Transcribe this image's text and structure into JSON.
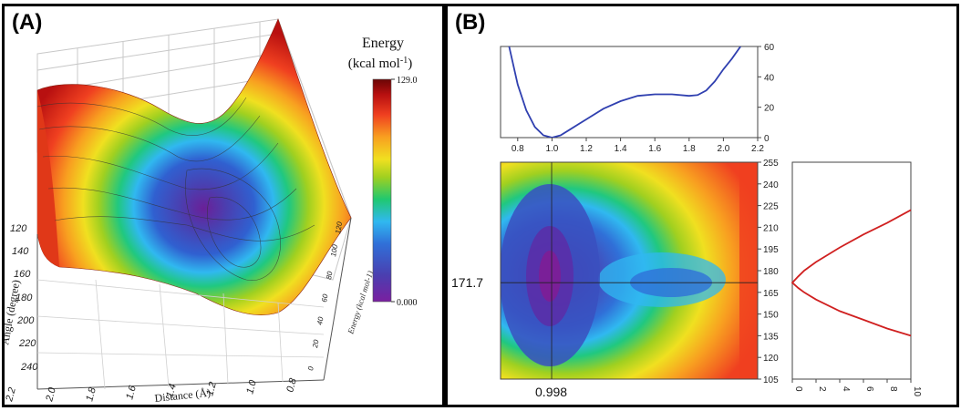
{
  "panel_a": {
    "label": "(A)",
    "colorbar": {
      "title_line1": "Energy",
      "title_line2": "(kcal mol",
      "title_sup": "-1",
      "title_end": ")",
      "max_label": "129.0",
      "min_label": "0.000",
      "colors": [
        "#7a1fa0",
        "#4a3fb0",
        "#3070d8",
        "#30b8f0",
        "#20c870",
        "#a0d020",
        "#f0e020",
        "#f8a020",
        "#f04020",
        "#b81010",
        "#6a0505"
      ]
    },
    "angle_axis": {
      "label": "Angle (degree)",
      "ticks": [
        "120",
        "140",
        "160",
        "180",
        "200",
        "220",
        "240"
      ]
    },
    "distance_axis": {
      "label": "Distance (Å)",
      "ticks": [
        "2.2",
        "2.0",
        "1.8",
        "1.6",
        "1.4",
        "1.2",
        "1.0",
        "0.8"
      ]
    },
    "energy_axis": {
      "label": "Energy (kcal mol-1)",
      "ticks": [
        "120",
        "100",
        "80",
        "60",
        "40",
        "20",
        "0"
      ]
    }
  },
  "panel_b": {
    "label": "(B)",
    "top_chart": {
      "x_ticks": [
        "0.8",
        "1.0",
        "1.2",
        "1.4",
        "1.6",
        "1.8",
        "2.0",
        "2.2"
      ],
      "y_ticks": [
        "0",
        "20",
        "40",
        "60"
      ],
      "line_color": "#3040b0"
    },
    "heatmap": {
      "y_ticks": [
        "105",
        "120",
        "135",
        "150",
        "165",
        "180",
        "195",
        "210",
        "225",
        "240",
        "255"
      ],
      "min_distance_label": "0.998",
      "min_angle_label": "171.7"
    },
    "side_chart": {
      "x_ticks": [
        "0",
        "2",
        "4",
        "6",
        "8",
        "10"
      ],
      "line_color": "#d02020"
    }
  },
  "chart_data": [
    {
      "type": "heatmap",
      "title": "",
      "xlabel": "Distance (Å)",
      "ylabel": "Angle (degree)",
      "zlabel": "Energy (kcal mol-1)",
      "zlim": [
        0.0,
        129.0
      ],
      "minimum": {
        "distance": 0.998,
        "angle": 171.7,
        "energy": 0.0
      }
    },
    {
      "type": "line",
      "title": "",
      "xlabel": "",
      "ylabel": "",
      "xlim": [
        0.7,
        2.2
      ],
      "ylim": [
        0,
        60
      ],
      "x": [
        0.7,
        0.75,
        0.8,
        0.85,
        0.9,
        0.95,
        1.0,
        1.05,
        1.1,
        1.2,
        1.3,
        1.4,
        1.5,
        1.6,
        1.7,
        1.8,
        1.85,
        1.9,
        1.95,
        2.0,
        2.05,
        2.1
      ],
      "y": [
        90,
        60,
        35,
        18,
        7,
        1.5,
        0,
        1.5,
        5,
        12,
        19,
        24,
        27.5,
        28.5,
        28.5,
        27.5,
        28,
        31,
        37,
        45,
        52,
        60
      ]
    },
    {
      "type": "line",
      "title": "",
      "xlabel": "",
      "ylabel": "",
      "xlim": [
        0,
        10
      ],
      "ylim": [
        105,
        255
      ],
      "x": [
        10,
        8,
        6,
        4,
        2,
        1,
        0.5,
        0,
        0.5,
        1,
        2,
        4,
        6,
        8,
        10
      ],
      "y": [
        135,
        140,
        146,
        152,
        160,
        165,
        168,
        171.7,
        176,
        180,
        186,
        196,
        205,
        213,
        222
      ]
    }
  ]
}
